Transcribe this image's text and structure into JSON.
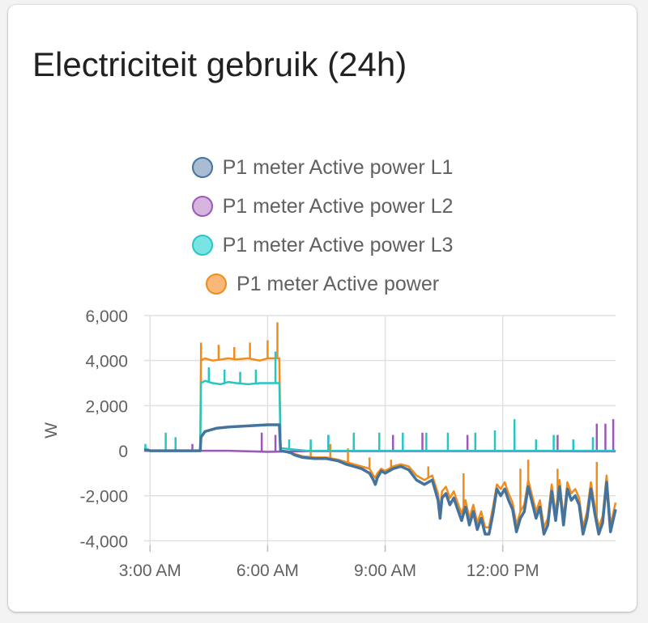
{
  "card": {
    "title": "Electriciteit gebruik (24h)"
  },
  "chart_data": {
    "type": "line",
    "title": "Electriciteit gebruik (24h)",
    "xlabel": "",
    "ylabel": "W",
    "x_unit": "hours",
    "xlim": [
      2.85,
      14.88
    ],
    "ylim": [
      -4200,
      6000
    ],
    "yticks": [
      6000,
      4000,
      2000,
      0,
      -2000,
      -4000
    ],
    "ytick_labels": [
      "6,000",
      "4,000",
      "2,000",
      "0",
      "-2,000",
      "-4,000"
    ],
    "xticks": [
      3,
      6,
      9,
      12
    ],
    "xtick_labels": [
      "3:00 AM",
      "6:00 AM",
      "9:00 AM",
      "12:00 PM"
    ],
    "grid": true,
    "legend_position": "top-center",
    "series": [
      {
        "name": "P1 meter Active power L1",
        "color": "#44739e",
        "fill": "#a8bcd4",
        "x": [
          2.85,
          2.95,
          3.0,
          3.5,
          4.0,
          4.28,
          4.3,
          4.4,
          4.7,
          5.0,
          5.5,
          6.0,
          6.3,
          6.33,
          6.5,
          6.6,
          6.7,
          6.9,
          7.2,
          7.5,
          7.8,
          8.0,
          8.2,
          8.4,
          8.6,
          8.7,
          8.75,
          8.8,
          8.9,
          9.0,
          9.2,
          9.4,
          9.6,
          9.8,
          10.0,
          10.2,
          10.35,
          10.4,
          10.45,
          10.55,
          10.65,
          10.75,
          10.85,
          10.95,
          11.05,
          11.15,
          11.25,
          11.35,
          11.45,
          11.55,
          11.65,
          11.75,
          11.85,
          11.95,
          12.05,
          12.15,
          12.25,
          12.35,
          12.45,
          12.55,
          12.65,
          12.75,
          12.85,
          12.95,
          13.05,
          13.15,
          13.25,
          13.35,
          13.45,
          13.55,
          13.65,
          13.75,
          13.85,
          13.95,
          14.05,
          14.15,
          14.25,
          14.35,
          14.45,
          14.55,
          14.65,
          14.75,
          14.88
        ],
        "y": [
          30,
          20,
          0,
          0,
          0,
          0,
          600,
          850,
          1000,
          1050,
          1100,
          1150,
          1150,
          0,
          -50,
          -100,
          -200,
          -300,
          -350,
          -350,
          -450,
          -600,
          -700,
          -800,
          -1000,
          -1300,
          -1500,
          -1200,
          -900,
          -1000,
          -800,
          -700,
          -850,
          -1300,
          -1500,
          -1300,
          -2200,
          -3000,
          -2100,
          -1900,
          -2400,
          -2100,
          -2600,
          -3100,
          -2500,
          -3300,
          -2700,
          -3500,
          -3000,
          -3700,
          -3700,
          -2800,
          -1700,
          -2000,
          -1700,
          -2200,
          -2600,
          -3600,
          -3000,
          -2700,
          -1600,
          -2300,
          -3000,
          -2500,
          -3700,
          -3300,
          -1800,
          -3100,
          -1600,
          -3300,
          -1700,
          -2200,
          -2000,
          -2400,
          -3700,
          -3000,
          -1700,
          -2800,
          -3700,
          -3200,
          -1400,
          -3600,
          -2600
        ]
      },
      {
        "name": "P1 meter Active power L2",
        "color": "#9b59b6",
        "fill": "#d6b4e0",
        "x": [
          2.85,
          3.0,
          4.0,
          5.0,
          6.0,
          7.0,
          8.0,
          9.0,
          10.0,
          11.0,
          12.0,
          13.0,
          14.0,
          14.4,
          14.6,
          14.88
        ],
        "y": [
          0,
          0,
          0,
          0,
          -50,
          -20,
          -20,
          -20,
          -20,
          -20,
          -20,
          -20,
          -30,
          -30,
          -30,
          -30
        ],
        "spikes": [
          {
            "x": 4.08,
            "y": 300
          },
          {
            "x": 5.85,
            "y": 800
          },
          {
            "x": 6.2,
            "y": 700
          },
          {
            "x": 7.55,
            "y": 700
          },
          {
            "x": 8.2,
            "y": 700
          },
          {
            "x": 9.2,
            "y": 700
          },
          {
            "x": 9.95,
            "y": 800
          },
          {
            "x": 11.1,
            "y": 700
          },
          {
            "x": 12.3,
            "y": 600
          },
          {
            "x": 13.4,
            "y": 700
          },
          {
            "x": 14.4,
            "y": 1200
          },
          {
            "x": 14.62,
            "y": 1200
          },
          {
            "x": 14.82,
            "y": 1400
          }
        ]
      },
      {
        "name": "P1 meter Active power L3",
        "color": "#26c6c6",
        "fill": "#7ae3e3",
        "x": [
          2.85,
          2.95,
          3.0,
          3.5,
          4.0,
          4.28,
          4.3,
          4.4,
          4.6,
          4.8,
          5.0,
          5.2,
          5.5,
          5.8,
          6.0,
          6.3,
          6.33,
          6.4,
          7.0,
          8.0,
          9.0,
          10.0,
          11.0,
          12.0,
          13.0,
          14.0,
          14.88
        ],
        "y": [
          100,
          50,
          0,
          0,
          0,
          0,
          3000,
          3100,
          3000,
          2950,
          3050,
          3000,
          2950,
          3000,
          3000,
          3000,
          100,
          100,
          0,
          0,
          0,
          0,
          0,
          0,
          0,
          0,
          0
        ],
        "spikes": [
          {
            "x": 2.88,
            "y": 300
          },
          {
            "x": 3.4,
            "y": 800
          },
          {
            "x": 3.65,
            "y": 600
          },
          {
            "x": 4.5,
            "y": 3700
          },
          {
            "x": 4.9,
            "y": 3600
          },
          {
            "x": 5.3,
            "y": 3500
          },
          {
            "x": 5.7,
            "y": 3600
          },
          {
            "x": 6.2,
            "y": 4400
          },
          {
            "x": 6.55,
            "y": 500
          },
          {
            "x": 7.1,
            "y": 500
          },
          {
            "x": 7.55,
            "y": 700
          },
          {
            "x": 8.2,
            "y": 800
          },
          {
            "x": 8.85,
            "y": 800
          },
          {
            "x": 9.45,
            "y": 800
          },
          {
            "x": 10.05,
            "y": 800
          },
          {
            "x": 10.6,
            "y": 800
          },
          {
            "x": 11.3,
            "y": 800
          },
          {
            "x": 11.8,
            "y": 900
          },
          {
            "x": 12.3,
            "y": 1400
          },
          {
            "x": 12.85,
            "y": 500
          },
          {
            "x": 13.3,
            "y": 700
          },
          {
            "x": 13.8,
            "y": 500
          },
          {
            "x": 14.3,
            "y": 600
          }
        ]
      },
      {
        "name": "P1 meter Active power",
        "color": "#f08c1c",
        "fill": "#f9b877",
        "x": [
          2.85,
          2.95,
          3.0,
          3.5,
          4.0,
          4.28,
          4.3,
          4.4,
          4.6,
          4.8,
          5.0,
          5.2,
          5.5,
          5.8,
          6.0,
          6.3,
          6.33,
          6.5,
          6.7,
          6.9,
          7.2,
          7.5,
          7.8,
          8.0,
          8.2,
          8.4,
          8.6,
          8.7,
          8.75,
          8.8,
          8.9,
          9.0,
          9.2,
          9.4,
          9.6,
          9.8,
          10.0,
          10.2,
          10.35,
          10.4,
          10.45,
          10.55,
          10.65,
          10.75,
          10.85,
          10.95,
          11.05,
          11.15,
          11.25,
          11.35,
          11.45,
          11.55,
          11.65,
          11.75,
          11.85,
          11.95,
          12.05,
          12.15,
          12.25,
          12.35,
          12.45,
          12.55,
          12.65,
          12.75,
          12.85,
          12.95,
          13.05,
          13.15,
          13.25,
          13.35,
          13.45,
          13.55,
          13.65,
          13.75,
          13.85,
          13.95,
          14.05,
          14.15,
          14.25,
          14.35,
          14.45,
          14.55,
          14.65,
          14.75,
          14.88
        ],
        "y": [
          100,
          50,
          0,
          0,
          0,
          0,
          4000,
          4100,
          4000,
          4050,
          4100,
          4050,
          4100,
          4000,
          4100,
          4100,
          0,
          -50,
          -150,
          -250,
          -300,
          -300,
          -400,
          -500,
          -600,
          -700,
          -800,
          -1100,
          -1200,
          -1000,
          -800,
          -900,
          -700,
          -600,
          -700,
          -1100,
          -1300,
          -1100,
          -1900,
          -2700,
          -1800,
          -1600,
          -2100,
          -1800,
          -2300,
          -2800,
          -2200,
          -3000,
          -2400,
          -3200,
          -2700,
          -3400,
          -3400,
          -2500,
          -1500,
          -1700,
          -1400,
          -1900,
          -2300,
          -3300,
          -2700,
          -2400,
          -1300,
          -2000,
          -2700,
          -2200,
          -3400,
          -3000,
          -1500,
          -2800,
          -1300,
          -3000,
          -1400,
          -1900,
          -1700,
          -2100,
          -3400,
          -2700,
          -1400,
          -2500,
          -3400,
          -2900,
          -1100,
          -3300,
          -2300
        ],
        "spikes": [
          {
            "x": 4.3,
            "y": 4800
          },
          {
            "x": 4.75,
            "y": 4700
          },
          {
            "x": 5.15,
            "y": 4600
          },
          {
            "x": 5.55,
            "y": 4800
          },
          {
            "x": 6.0,
            "y": 4900
          },
          {
            "x": 6.25,
            "y": 5700
          },
          {
            "x": 7.1,
            "y": 200
          },
          {
            "x": 7.6,
            "y": 300
          },
          {
            "x": 8.05,
            "y": 100
          },
          {
            "x": 8.6,
            "y": -300
          },
          {
            "x": 9.15,
            "y": -400
          },
          {
            "x": 10.1,
            "y": -700
          },
          {
            "x": 11.0,
            "y": -1000
          },
          {
            "x": 12.45,
            "y": -800
          },
          {
            "x": 12.65,
            "y": -400
          },
          {
            "x": 13.4,
            "y": -800
          },
          {
            "x": 14.4,
            "y": -500
          }
        ]
      }
    ]
  }
}
